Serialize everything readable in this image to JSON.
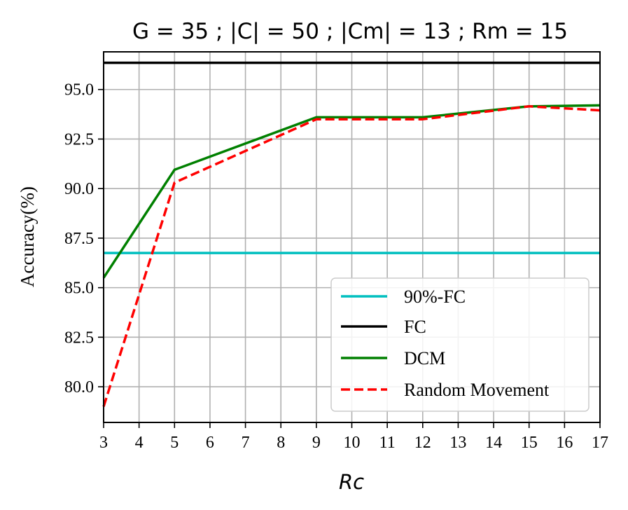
{
  "chart_data": {
    "type": "line",
    "title": "G = 35 ; |C| = 50 ; |Cm| = 13 ; Rm = 15",
    "xlabel": "Rc",
    "ylabel": "Accuracy(%)",
    "xlim": [
      3,
      17
    ],
    "ylim": [
      78.2,
      96.9
    ],
    "xticks": [
      "3",
      "4",
      "5",
      "6",
      "7",
      "8",
      "9",
      "10",
      "11",
      "12",
      "13",
      "14",
      "15",
      "16",
      "17"
    ],
    "yticks": [
      "80.0",
      "82.5",
      "85.0",
      "87.5",
      "90.0",
      "92.5",
      "95.0"
    ],
    "grid": true,
    "legend_position": "lower-right",
    "series": [
      {
        "name": "90%-FC",
        "color": "#00bfbf",
        "dash": false,
        "x": [
          3,
          17
        ],
        "y": [
          86.75,
          86.75
        ]
      },
      {
        "name": "FC",
        "color": "#000000",
        "dash": false,
        "x": [
          3,
          17
        ],
        "y": [
          96.35,
          96.35
        ]
      },
      {
        "name": "DCM",
        "color": "#008000",
        "dash": false,
        "x": [
          3,
          5,
          9,
          12,
          15,
          17
        ],
        "y": [
          85.5,
          90.95,
          93.6,
          93.6,
          94.15,
          94.2
        ]
      },
      {
        "name": "Random Movement",
        "color": "#ff0000",
        "dash": true,
        "x": [
          3,
          5,
          9,
          12,
          15,
          17
        ],
        "y": [
          79.0,
          90.3,
          93.5,
          93.5,
          94.15,
          93.95
        ]
      }
    ]
  }
}
